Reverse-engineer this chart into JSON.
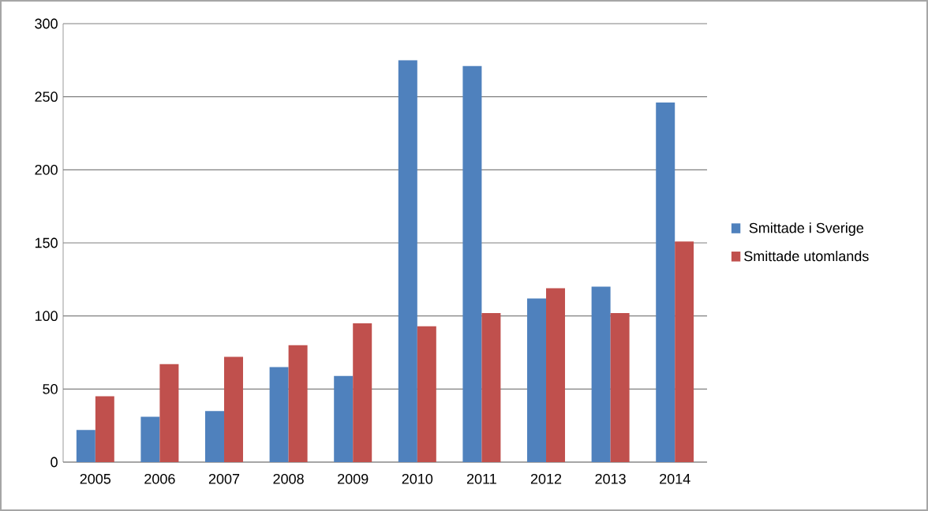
{
  "chart_data": {
    "type": "bar",
    "categories": [
      "2005",
      "2006",
      "2007",
      "2008",
      "2009",
      "2010",
      "2011",
      "2012",
      "2013",
      "2014"
    ],
    "series": [
      {
        "name": "Smittade i Sverige",
        "color": "#4f81bd",
        "values": [
          22,
          31,
          35,
          65,
          59,
          275,
          271,
          112,
          120,
          246
        ]
      },
      {
        "name": "Smittade utomlands",
        "color": "#c0504d",
        "values": [
          45,
          67,
          72,
          80,
          95,
          93,
          102,
          119,
          102,
          151
        ]
      }
    ],
    "ylim": [
      0,
      300
    ],
    "yticks": [
      0,
      50,
      100,
      150,
      200,
      250,
      300
    ],
    "grid": "y",
    "legend": "right"
  }
}
